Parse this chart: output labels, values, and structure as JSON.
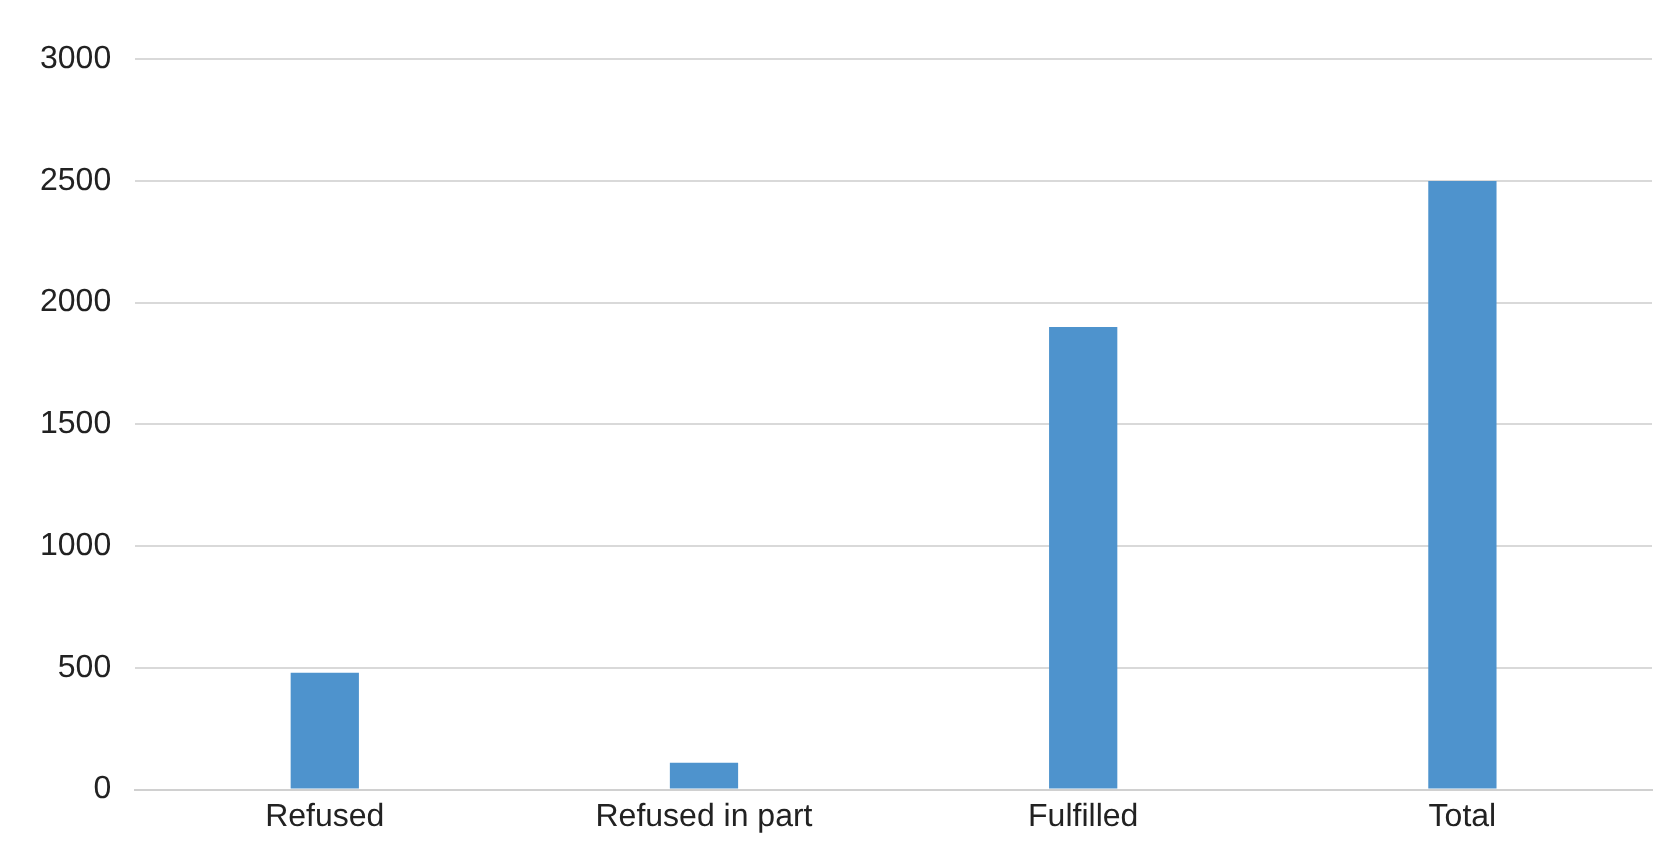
{
  "chart_data": {
    "type": "bar",
    "categories": [
      "Refused",
      "Refused in part",
      "Fulfilled",
      "Total"
    ],
    "values": [
      480,
      110,
      1900,
      2500
    ],
    "color": "#4e93cd",
    "ylim": [
      0,
      3000
    ],
    "yticks": [
      0,
      500,
      1000,
      1500,
      2000,
      2500,
      3000
    ],
    "grid": "y"
  }
}
